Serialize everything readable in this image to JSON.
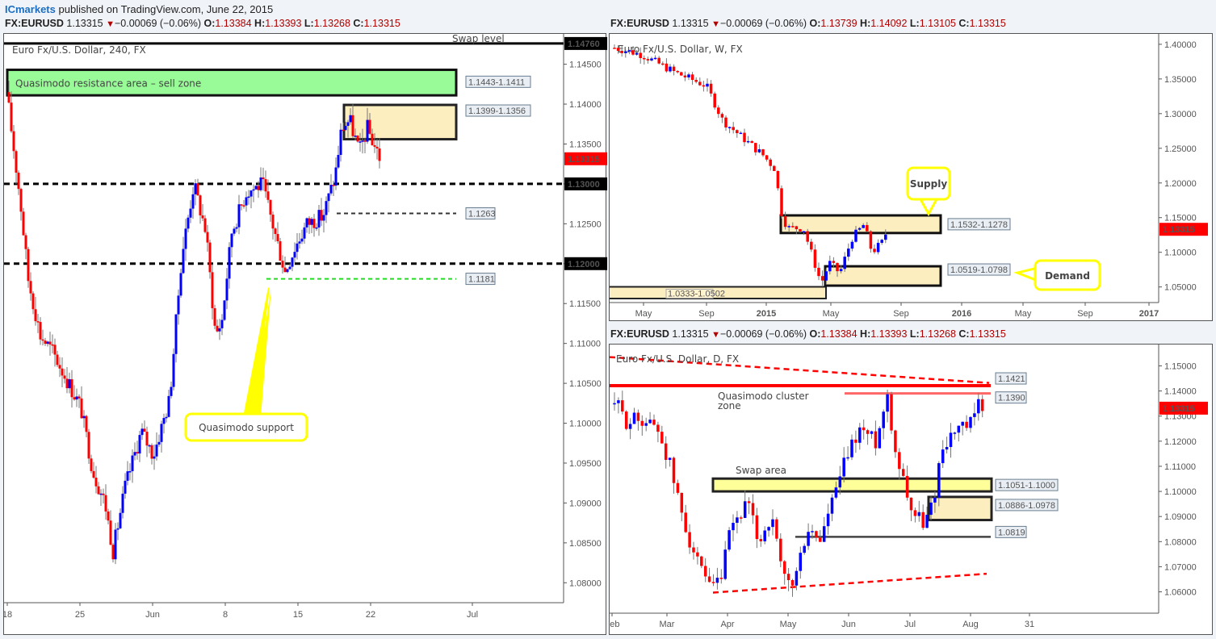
{
  "publisher": {
    "brand": "ICmarkets",
    "text": " published on TradingView.com, June 22, 2015"
  },
  "headers": {
    "h4": {
      "symbol": "FX:EURUSD",
      "last": "1.13315",
      "change": "−0.00069 (−0.06%)",
      "o_label": "O:",
      "o": "1.13384",
      "h_label": "H:",
      "h": "1.13393",
      "l_label": "L:",
      "l": "1.13268",
      "c_label": "C:",
      "c": "1.13315"
    },
    "weekly": {
      "symbol": "FX:EURUSD",
      "last": "1.13315",
      "change": "−0.00069 (−0.06%)",
      "o_label": "O:",
      "o": "1.13739",
      "h_label": "H:",
      "h": "1.14092",
      "l_label": "L:",
      "l": "1.13105",
      "c_label": "C:",
      "c": "1.13315"
    },
    "daily": {
      "symbol": "FX:EURUSD",
      "last": "1.13315",
      "change": "−0.00069 (−0.06%)",
      "o_label": "O:",
      "o": "1.13384",
      "h_label": "H:",
      "h": "1.13393",
      "l_label": "L:",
      "l": "1.13268",
      "c_label": "C:",
      "c": "1.13315"
    }
  },
  "colors": {
    "up": "#0000ff",
    "down": "#ff0000",
    "price_tag": "#ff0000",
    "zone_fill": "#fdeec0",
    "green_zone": "#98fb98",
    "yellow_zone": "#ffff99",
    "callout": "#ffff00"
  },
  "chart_data": [
    {
      "type": "candlestick",
      "title": "Euro Fx/U.S. Dollar, 240, FX",
      "timeframe": "240",
      "xlabel": "",
      "ylabel": "",
      "ylim": [
        1.0775,
        1.1485
      ],
      "y_ticks": [
        "1.14500",
        "1.14000",
        "1.13500",
        "1.13000",
        "1.12500",
        "1.12000",
        "1.11500",
        "1.11000",
        "1.10500",
        "1.10000",
        "1.09500",
        "1.09000",
        "1.08500",
        "1.08000"
      ],
      "x_ticks": [
        "18",
        "25",
        "Jun",
        "8",
        "15",
        "22",
        "Jul"
      ],
      "price_labels": [
        {
          "value": "1.14760",
          "style": "black"
        },
        {
          "value": "1.13315",
          "style": "red"
        },
        {
          "value": "1.13000",
          "style": "black"
        },
        {
          "value": "1.12000",
          "style": "black"
        }
      ],
      "zones": [
        {
          "label": "Quasimodo resistance area – sell zone",
          "range_label": "1.1443-1.1411",
          "top": 1.1443,
          "bottom": 1.1411,
          "color": "green"
        },
        {
          "label": "",
          "range_label": "1.1399-1.1356",
          "top": 1.1399,
          "bottom": 1.1356,
          "color": "tan"
        }
      ],
      "lines": [
        {
          "value": 1.1476,
          "label": "Swap level",
          "style": "solid-black"
        },
        {
          "value": 1.13,
          "label": "",
          "style": "dashed-black-thick"
        },
        {
          "value": 1.1263,
          "label": "1.1263",
          "style": "dashed-black"
        },
        {
          "value": 1.12,
          "label": "",
          "style": "dashed-black-thick"
        },
        {
          "value": 1.1181,
          "label": "1.1181",
          "style": "dashed-green"
        }
      ],
      "annotations": [
        {
          "text": "Quasimodo support"
        }
      ],
      "last_price": 1.13315
    },
    {
      "type": "candlestick",
      "title": "Euro Fx/U.S. Dollar, W, FX",
      "timeframe": "W",
      "ylim": [
        1.0275,
        1.415
      ],
      "y_ticks": [
        "1.40000",
        "1.35000",
        "1.30000",
        "1.25000",
        "1.20000",
        "1.15000",
        "1.10000",
        "1.05000"
      ],
      "x_ticks": [
        "May",
        "Sep",
        "2015",
        "May",
        "Sep",
        "2016",
        "May",
        "Sep",
        "2017"
      ],
      "price_labels": [
        {
          "value": "1.13315",
          "style": "red"
        }
      ],
      "zones": [
        {
          "label": "Supply",
          "range_label": "1.1532-1.1278",
          "top": 1.1532,
          "bottom": 1.1278
        },
        {
          "label": "Demand",
          "range_label": "1.0519-1.0798",
          "top": 1.0798,
          "bottom": 1.0519
        },
        {
          "label": "",
          "range_label": "1.0333-1.0502",
          "top": 1.0502,
          "bottom": 1.0333
        }
      ],
      "last_price": 1.13315
    },
    {
      "type": "candlestick",
      "title": "Euro Fx/U.S. Dollar, D, FX",
      "timeframe": "D",
      "ylim": [
        1.0515,
        1.1585
      ],
      "y_ticks": [
        "1.15000",
        "1.14000",
        "1.13000",
        "1.12000",
        "1.11000",
        "1.10000",
        "1.09000",
        "1.08000",
        "1.07000",
        "1.06000"
      ],
      "x_ticks": [
        "Feb",
        "Mar",
        "Apr",
        "May",
        "Jun",
        "Jul",
        "Aug",
        "31"
      ],
      "price_labels": [
        {
          "value": "1.13315",
          "style": "red"
        }
      ],
      "zones": [
        {
          "label": "Swap area",
          "range_label": "1.1051-1.1000",
          "top": 1.1051,
          "bottom": 1.1,
          "color": "yellow"
        },
        {
          "label": "",
          "range_label": "1.0886-1.0978",
          "top": 1.0978,
          "bottom": 1.0886,
          "color": "tan"
        }
      ],
      "lines": [
        {
          "value": 1.1421,
          "label": "1.1421",
          "style": "solid-red-thick"
        },
        {
          "value": 1.139,
          "label": "1.1390",
          "style": "solid-red-thin"
        },
        {
          "value": 1.0819,
          "label": "1.0819",
          "style": "solid-black"
        }
      ],
      "trendlines": [
        {
          "from": [
            1.153,
            "Feb"
          ],
          "to": [
            1.1432,
            "Jun-25"
          ],
          "style": "dashed-red"
        },
        {
          "from": [
            1.0592,
            "Mar-12"
          ],
          "to": [
            1.0665,
            "Jun-28"
          ],
          "style": "dashed-red"
        }
      ],
      "annotations": [
        {
          "text": "Quasimodo cluster zone"
        }
      ],
      "last_price": 1.13315
    }
  ],
  "labels": {
    "h4_title": "Euro Fx/U.S. Dollar, 240, FX",
    "w_title": "Euro Fx/U.S. Dollar, W, FX",
    "d_title": "Euro Fx/U.S. Dollar, D, FX",
    "green_zone": "Quasimodo resistance area – sell zone",
    "swap_level": "Swap level",
    "qm_support": "Quasimodo support",
    "supply": "Supply",
    "demand": "Demand",
    "qm_cluster_1": "Quasimodo cluster",
    "qm_cluster_2": "zone",
    "swap_area": "Swap area"
  }
}
